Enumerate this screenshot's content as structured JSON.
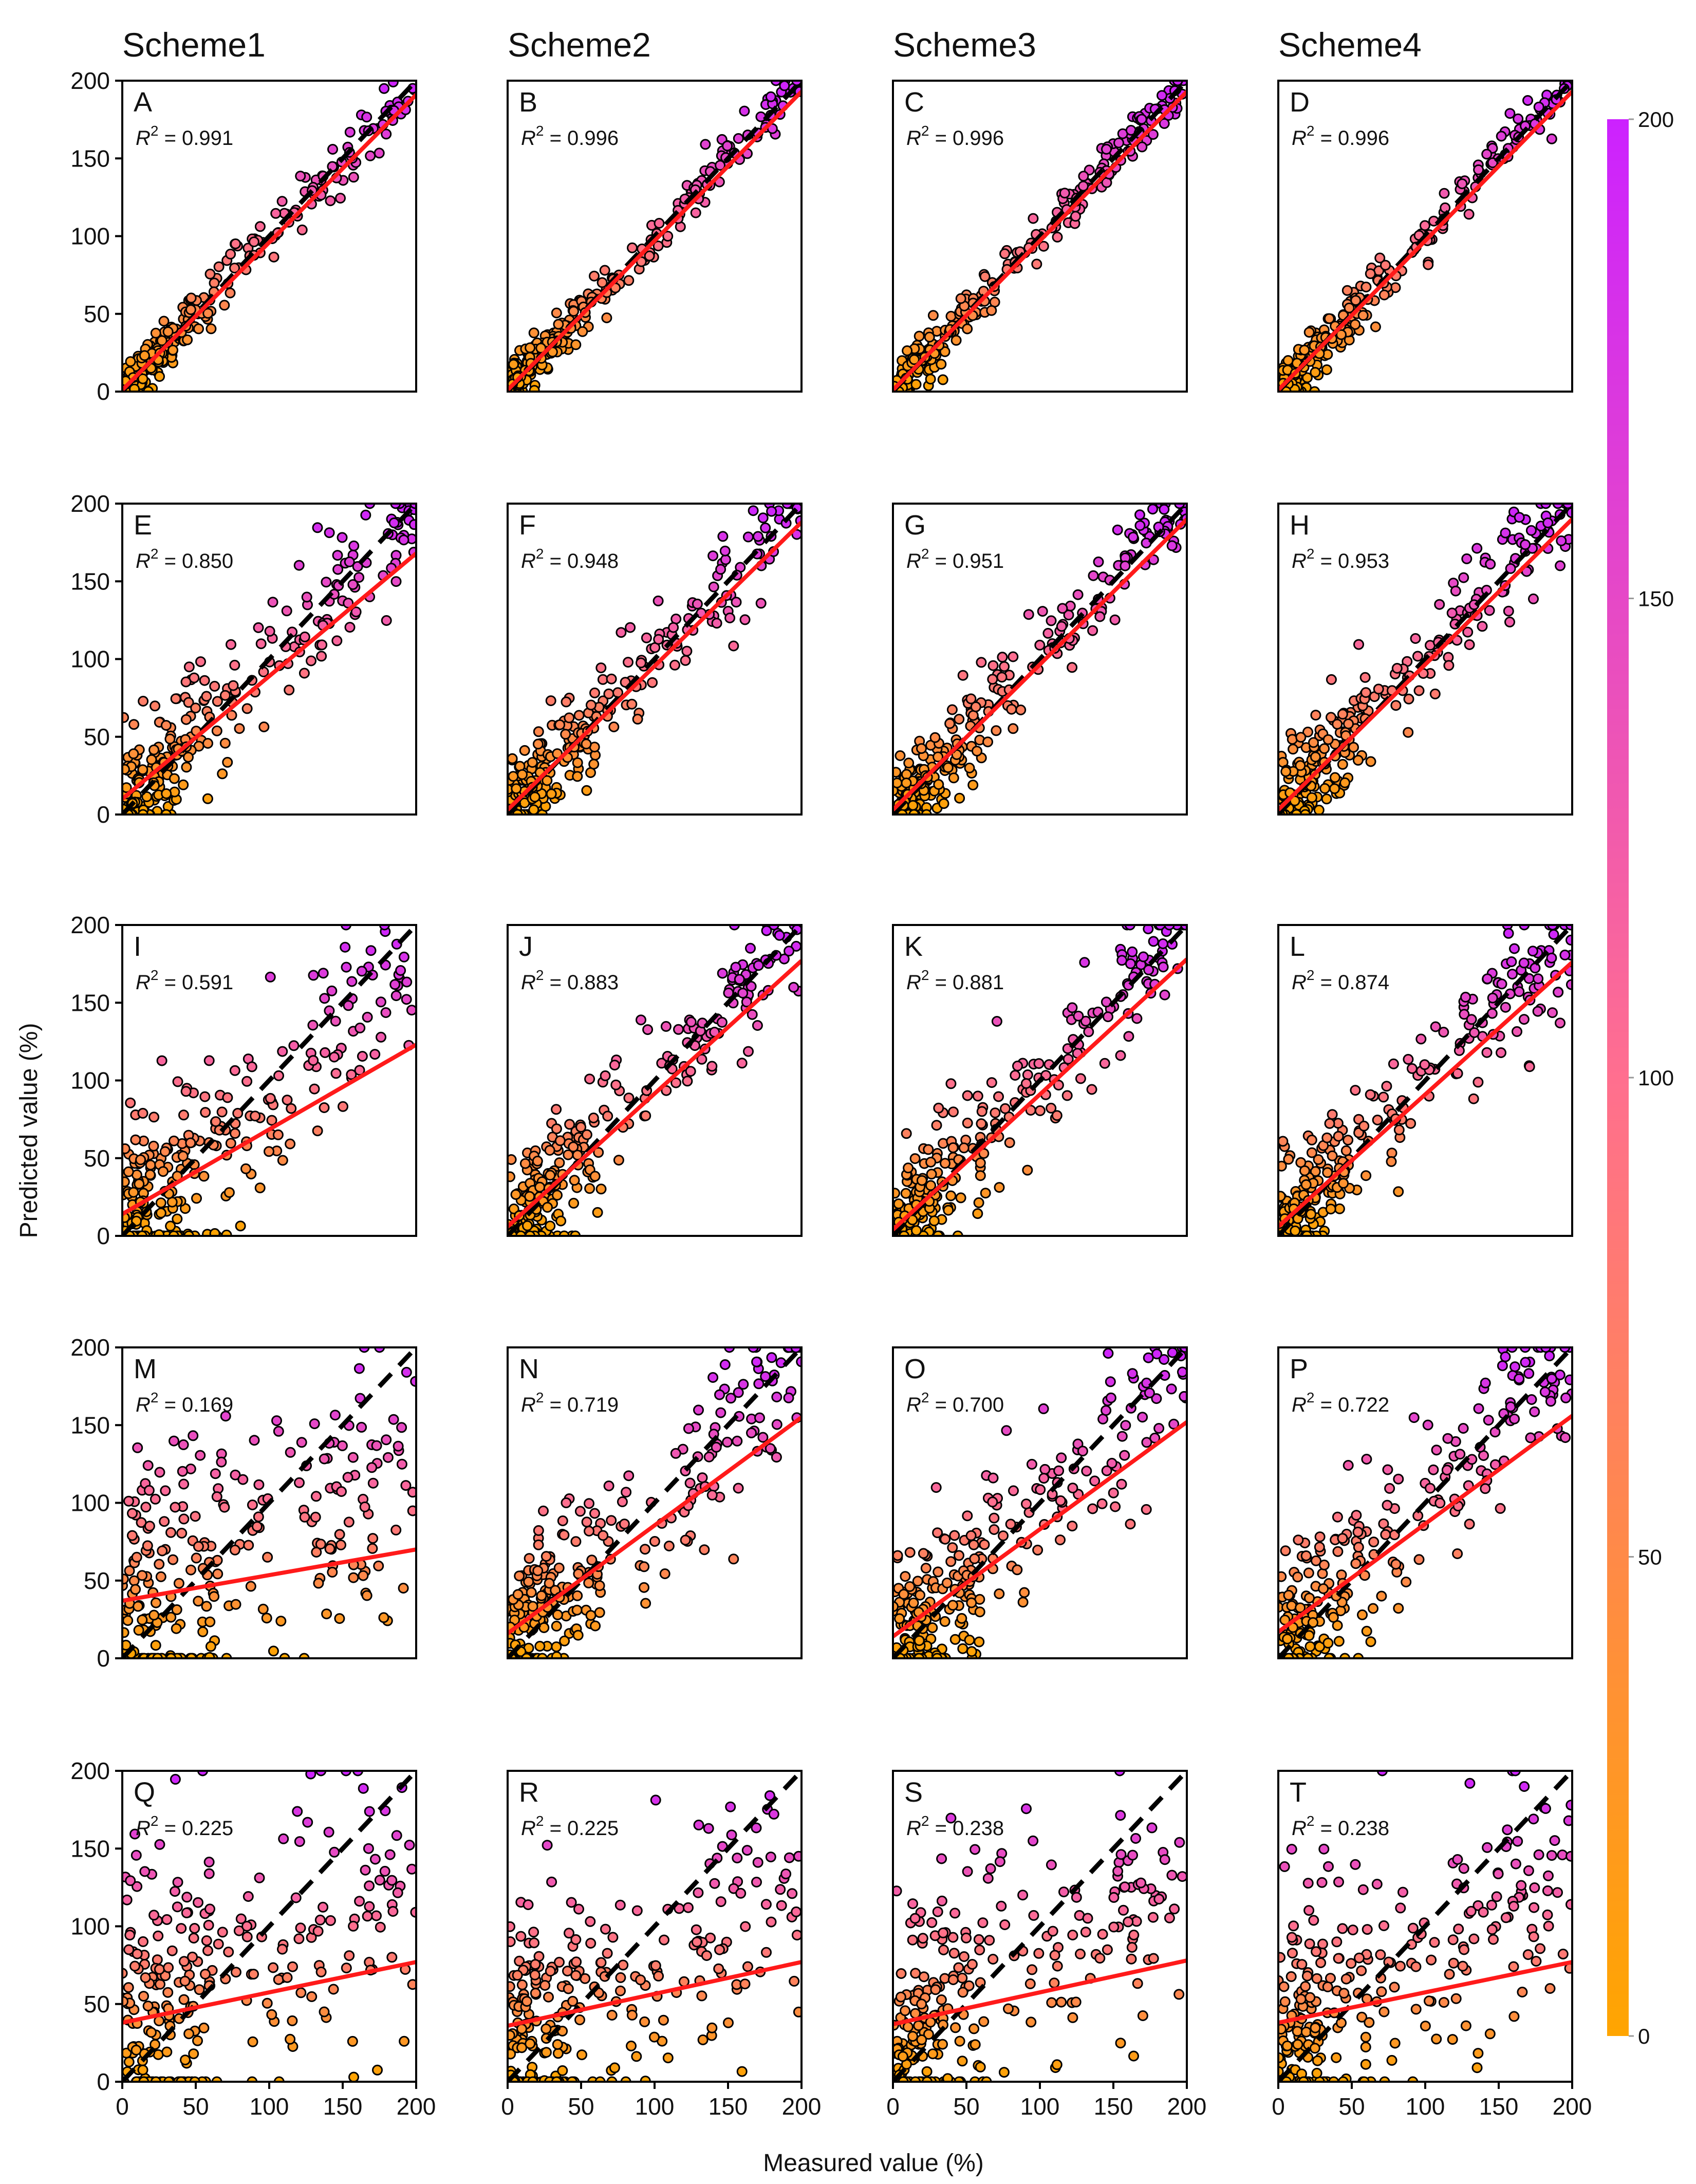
{
  "chart_data": {
    "type": "scatter",
    "x_label": "Measured value (%)",
    "y_label": "Predicted value (%)",
    "xlim": [
      0,
      200
    ],
    "ylim": [
      0,
      200
    ],
    "ticks": [
      0,
      50,
      100,
      150,
      200
    ],
    "tick_labels": [
      "0",
      "50",
      "100",
      "150",
      "200"
    ],
    "identity_line": "black dashed 1:1 line",
    "fit_line_color": "#ff1a1a",
    "point_edge_color": "#000000",
    "colorbar": {
      "min": 0,
      "max": 200,
      "ticks": [
        0,
        50,
        100,
        150,
        200
      ],
      "tick_labels": [
        "0",
        "50",
        "100",
        "150",
        "200"
      ],
      "color_low": "#ffa500",
      "color_mid": "#ff6f8f",
      "color_high": "#cc22ff"
    },
    "column_titles": [
      "Scheme1",
      "Scheme2",
      "Scheme3",
      "Scheme4"
    ],
    "panels": [
      {
        "letter": "A",
        "r2_value": "= 0.991",
        "spread": 0.05,
        "bias": 0.0,
        "fit": [
          1,
          191
        ]
      },
      {
        "letter": "B",
        "r2_value": "= 0.996",
        "spread": 0.03,
        "bias": 0.0,
        "fit": [
          1,
          193
        ]
      },
      {
        "letter": "C",
        "r2_value": "= 0.996",
        "spread": 0.03,
        "bias": 0.0,
        "fit": [
          1,
          193
        ]
      },
      {
        "letter": "D",
        "r2_value": "= 0.996",
        "spread": 0.03,
        "bias": 0.0,
        "fit": [
          1,
          193
        ]
      },
      {
        "letter": "E",
        "r2_value": "= 0.850",
        "spread": 0.25,
        "bias": 0.1,
        "fit": [
          10,
          168
        ]
      },
      {
        "letter": "F",
        "r2_value": "= 0.948",
        "spread": 0.15,
        "bias": 0.05,
        "fit": [
          3,
          188
        ]
      },
      {
        "letter": "G",
        "r2_value": "= 0.951",
        "spread": 0.15,
        "bias": 0.05,
        "fit": [
          3,
          190
        ]
      },
      {
        "letter": "H",
        "r2_value": "= 0.953",
        "spread": 0.15,
        "bias": 0.05,
        "fit": [
          3,
          190
        ]
      },
      {
        "letter": "I",
        "r2_value": "= 0.591",
        "spread": 0.45,
        "bias": 0.15,
        "fit": [
          14,
          123
        ]
      },
      {
        "letter": "J",
        "r2_value": "= 0.883",
        "spread": 0.25,
        "bias": 0.08,
        "fit": [
          6,
          177
        ]
      },
      {
        "letter": "K",
        "r2_value": "= 0.881",
        "spread": 0.25,
        "bias": 0.08,
        "fit": [
          4,
          178
        ]
      },
      {
        "letter": "L",
        "r2_value": "= 0.874",
        "spread": 0.25,
        "bias": 0.08,
        "fit": [
          6,
          176
        ]
      },
      {
        "letter": "M",
        "r2_value": "= 0.169",
        "spread": 0.6,
        "bias": 0.2,
        "fit": [
          37,
          70
        ]
      },
      {
        "letter": "N",
        "r2_value": "= 0.719",
        "spread": 0.35,
        "bias": 0.1,
        "fit": [
          16,
          155
        ]
      },
      {
        "letter": "O",
        "r2_value": "= 0.700",
        "spread": 0.35,
        "bias": 0.1,
        "fit": [
          14,
          152
        ]
      },
      {
        "letter": "P",
        "r2_value": "= 0.722",
        "spread": 0.35,
        "bias": 0.1,
        "fit": [
          17,
          156
        ]
      },
      {
        "letter": "Q",
        "r2_value": "= 0.225",
        "spread": 0.65,
        "bias": 0.2,
        "fit": [
          38,
          77
        ]
      },
      {
        "letter": "R",
        "r2_value": "= 0.225",
        "spread": 0.65,
        "bias": 0.2,
        "fit": [
          36,
          77
        ]
      },
      {
        "letter": "S",
        "r2_value": "= 0.238",
        "spread": 0.65,
        "bias": 0.2,
        "fit": [
          37,
          78
        ]
      },
      {
        "letter": "T",
        "r2_value": "= 0.238",
        "spread": 0.65,
        "bias": 0.2,
        "fit": [
          38,
          77
        ]
      }
    ]
  }
}
